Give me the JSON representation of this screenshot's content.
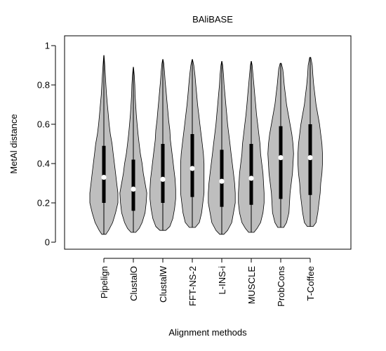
{
  "chart_data": {
    "type": "violin",
    "title": "BAliBASE",
    "xlabel": "Alignment methods",
    "ylabel": "MetAl distance",
    "ylim": [
      0,
      1
    ],
    "yticks": [
      0,
      0.2,
      0.4,
      0.6,
      0.8,
      1
    ],
    "ytick_labels": [
      "0",
      "0.2",
      "0.4",
      "0.6",
      "0.8",
      "1"
    ],
    "fill_color": "#bebebe",
    "median_color": "#ffffff",
    "series": [
      {
        "name": "Pipelign",
        "min": 0.04,
        "q1": 0.2,
        "median": 0.33,
        "q3": 0.49,
        "max": 0.95,
        "profile": [
          [
            0.04,
            0.035
          ],
          [
            0.06,
            0.08
          ],
          [
            0.1,
            0.15
          ],
          [
            0.15,
            0.2
          ],
          [
            0.2,
            0.24
          ],
          [
            0.25,
            0.24
          ],
          [
            0.3,
            0.22
          ],
          [
            0.35,
            0.2
          ],
          [
            0.4,
            0.18
          ],
          [
            0.45,
            0.16
          ],
          [
            0.5,
            0.14
          ],
          [
            0.55,
            0.11
          ],
          [
            0.6,
            0.09
          ],
          [
            0.65,
            0.075
          ],
          [
            0.7,
            0.06
          ],
          [
            0.75,
            0.045
          ],
          [
            0.8,
            0.035
          ],
          [
            0.85,
            0.025
          ],
          [
            0.9,
            0.015
          ],
          [
            0.95,
            0.003
          ]
        ]
      },
      {
        "name": "ClustalO",
        "min": 0.05,
        "q1": 0.16,
        "median": 0.27,
        "q3": 0.42,
        "max": 0.89,
        "profile": [
          [
            0.05,
            0.04
          ],
          [
            0.07,
            0.1
          ],
          [
            0.1,
            0.15
          ],
          [
            0.15,
            0.2
          ],
          [
            0.2,
            0.22
          ],
          [
            0.25,
            0.23
          ],
          [
            0.3,
            0.2
          ],
          [
            0.35,
            0.17
          ],
          [
            0.4,
            0.15
          ],
          [
            0.45,
            0.12
          ],
          [
            0.5,
            0.1
          ],
          [
            0.55,
            0.08
          ],
          [
            0.6,
            0.065
          ],
          [
            0.65,
            0.05
          ],
          [
            0.7,
            0.04
          ],
          [
            0.75,
            0.03
          ],
          [
            0.8,
            0.025
          ],
          [
            0.85,
            0.015
          ],
          [
            0.89,
            0.003
          ]
        ]
      },
      {
        "name": "ClustalW",
        "min": 0.06,
        "q1": 0.2,
        "median": 0.32,
        "q3": 0.5,
        "max": 0.93,
        "profile": [
          [
            0.06,
            0.05
          ],
          [
            0.08,
            0.12
          ],
          [
            0.12,
            0.17
          ],
          [
            0.17,
            0.2
          ],
          [
            0.22,
            0.22
          ],
          [
            0.27,
            0.22
          ],
          [
            0.32,
            0.21
          ],
          [
            0.37,
            0.19
          ],
          [
            0.42,
            0.17
          ],
          [
            0.47,
            0.15
          ],
          [
            0.52,
            0.13
          ],
          [
            0.57,
            0.12
          ],
          [
            0.62,
            0.1
          ],
          [
            0.67,
            0.085
          ],
          [
            0.72,
            0.07
          ],
          [
            0.77,
            0.055
          ],
          [
            0.82,
            0.04
          ],
          [
            0.87,
            0.028
          ],
          [
            0.91,
            0.015
          ],
          [
            0.93,
            0.003
          ]
        ]
      },
      {
        "name": "FFT-NS-2",
        "min": 0.075,
        "q1": 0.23,
        "median": 0.375,
        "q3": 0.55,
        "max": 0.93,
        "profile": [
          [
            0.075,
            0.05
          ],
          [
            0.1,
            0.12
          ],
          [
            0.15,
            0.16
          ],
          [
            0.2,
            0.18
          ],
          [
            0.25,
            0.2
          ],
          [
            0.3,
            0.2
          ],
          [
            0.35,
            0.2
          ],
          [
            0.4,
            0.2
          ],
          [
            0.45,
            0.19
          ],
          [
            0.5,
            0.17
          ],
          [
            0.55,
            0.15
          ],
          [
            0.6,
            0.13
          ],
          [
            0.65,
            0.11
          ],
          [
            0.7,
            0.09
          ],
          [
            0.75,
            0.075
          ],
          [
            0.8,
            0.06
          ],
          [
            0.85,
            0.045
          ],
          [
            0.9,
            0.025
          ],
          [
            0.93,
            0.003
          ]
        ]
      },
      {
        "name": "L-INS-i",
        "min": 0.04,
        "q1": 0.18,
        "median": 0.31,
        "q3": 0.47,
        "max": 0.92,
        "profile": [
          [
            0.04,
            0.035
          ],
          [
            0.06,
            0.1
          ],
          [
            0.1,
            0.17
          ],
          [
            0.15,
            0.2
          ],
          [
            0.2,
            0.23
          ],
          [
            0.25,
            0.23
          ],
          [
            0.3,
            0.22
          ],
          [
            0.35,
            0.2
          ],
          [
            0.4,
            0.18
          ],
          [
            0.45,
            0.16
          ],
          [
            0.5,
            0.14
          ],
          [
            0.55,
            0.12
          ],
          [
            0.6,
            0.1
          ],
          [
            0.65,
            0.085
          ],
          [
            0.7,
            0.07
          ],
          [
            0.75,
            0.055
          ],
          [
            0.8,
            0.04
          ],
          [
            0.85,
            0.03
          ],
          [
            0.9,
            0.015
          ],
          [
            0.92,
            0.003
          ]
        ]
      },
      {
        "name": "MUSCLE",
        "min": 0.05,
        "q1": 0.19,
        "median": 0.325,
        "q3": 0.5,
        "max": 0.92,
        "profile": [
          [
            0.05,
            0.045
          ],
          [
            0.07,
            0.1
          ],
          [
            0.1,
            0.16
          ],
          [
            0.15,
            0.2
          ],
          [
            0.2,
            0.22
          ],
          [
            0.25,
            0.22
          ],
          [
            0.3,
            0.21
          ],
          [
            0.35,
            0.2
          ],
          [
            0.4,
            0.18
          ],
          [
            0.45,
            0.16
          ],
          [
            0.5,
            0.15
          ],
          [
            0.55,
            0.13
          ],
          [
            0.6,
            0.11
          ],
          [
            0.65,
            0.09
          ],
          [
            0.7,
            0.075
          ],
          [
            0.75,
            0.06
          ],
          [
            0.8,
            0.045
          ],
          [
            0.85,
            0.03
          ],
          [
            0.9,
            0.015
          ],
          [
            0.92,
            0.003
          ]
        ]
      },
      {
        "name": "ProbCons",
        "min": 0.075,
        "q1": 0.22,
        "median": 0.43,
        "q3": 0.59,
        "max": 0.91,
        "profile": [
          [
            0.075,
            0.05
          ],
          [
            0.1,
            0.1
          ],
          [
            0.15,
            0.14
          ],
          [
            0.2,
            0.15
          ],
          [
            0.25,
            0.16
          ],
          [
            0.3,
            0.18
          ],
          [
            0.35,
            0.2
          ],
          [
            0.4,
            0.21
          ],
          [
            0.45,
            0.22
          ],
          [
            0.5,
            0.21
          ],
          [
            0.55,
            0.19
          ],
          [
            0.6,
            0.16
          ],
          [
            0.65,
            0.13
          ],
          [
            0.7,
            0.1
          ],
          [
            0.75,
            0.08
          ],
          [
            0.8,
            0.06
          ],
          [
            0.85,
            0.045
          ],
          [
            0.88,
            0.035
          ],
          [
            0.91,
            0.01
          ]
        ]
      },
      {
        "name": "T-Coffee",
        "min": 0.08,
        "q1": 0.24,
        "median": 0.43,
        "q3": 0.6,
        "max": 0.94,
        "profile": [
          [
            0.08,
            0.05
          ],
          [
            0.1,
            0.1
          ],
          [
            0.15,
            0.13
          ],
          [
            0.2,
            0.15
          ],
          [
            0.25,
            0.17
          ],
          [
            0.3,
            0.18
          ],
          [
            0.35,
            0.2
          ],
          [
            0.4,
            0.21
          ],
          [
            0.45,
            0.21
          ],
          [
            0.5,
            0.2
          ],
          [
            0.55,
            0.18
          ],
          [
            0.6,
            0.16
          ],
          [
            0.65,
            0.13
          ],
          [
            0.7,
            0.1
          ],
          [
            0.75,
            0.08
          ],
          [
            0.8,
            0.06
          ],
          [
            0.85,
            0.045
          ],
          [
            0.9,
            0.035
          ],
          [
            0.94,
            0.01
          ]
        ]
      }
    ]
  }
}
